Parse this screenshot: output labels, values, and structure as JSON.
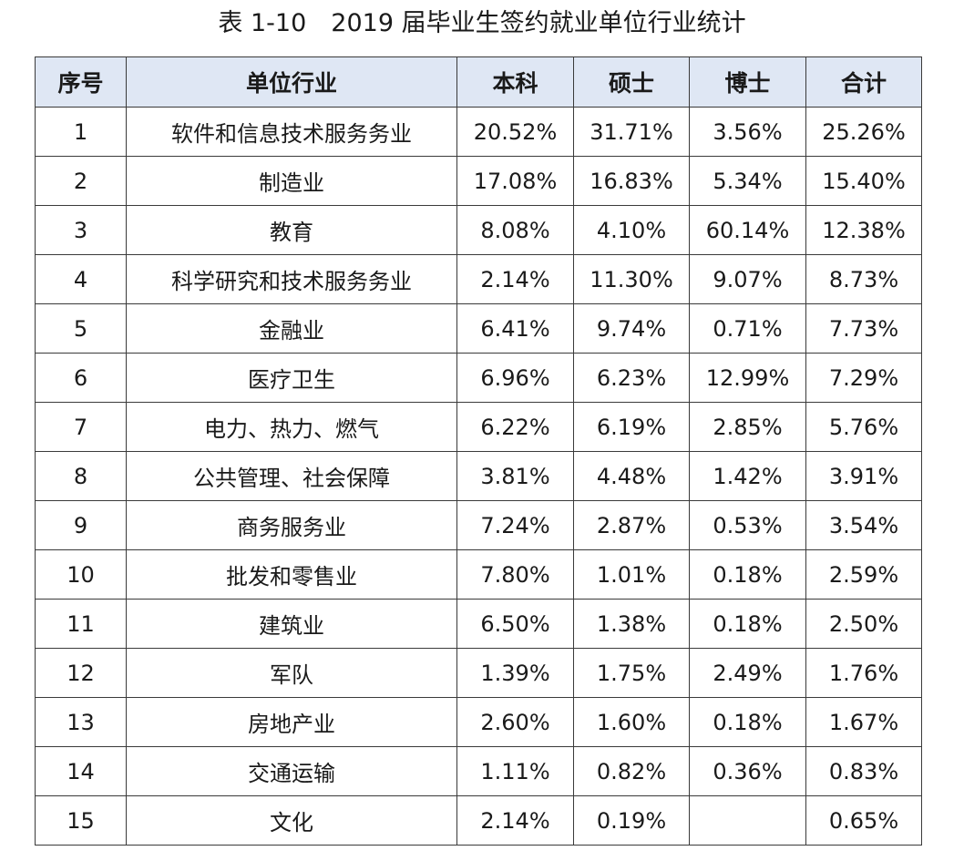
{
  "title": "表 1-10　2019 届毕业生签约就业单位行业统计",
  "headers": {
    "seq": "序号",
    "industry": "单位行业",
    "bachelor": "本科",
    "master": "硕士",
    "doctor": "博士",
    "total": "合计"
  },
  "rows": [
    {
      "seq": "1",
      "industry": "软件和信息技术服务务业",
      "bachelor": "20.52%",
      "master": "31.71%",
      "doctor": "3.56%",
      "total": "25.26%"
    },
    {
      "seq": "2",
      "industry": "制造业",
      "bachelor": "17.08%",
      "master": "16.83%",
      "doctor": "5.34%",
      "total": "15.40%"
    },
    {
      "seq": "3",
      "industry": "教育",
      "bachelor": "8.08%",
      "master": "4.10%",
      "doctor": "60.14%",
      "total": "12.38%"
    },
    {
      "seq": "4",
      "industry": "科学研究和技术服务务业",
      "bachelor": "2.14%",
      "master": "11.30%",
      "doctor": "9.07%",
      "total": "8.73%"
    },
    {
      "seq": "5",
      "industry": "金融业",
      "bachelor": "6.41%",
      "master": "9.74%",
      "doctor": "0.71%",
      "total": "7.73%"
    },
    {
      "seq": "6",
      "industry": "医疗卫生",
      "bachelor": "6.96%",
      "master": "6.23%",
      "doctor": "12.99%",
      "total": "7.29%"
    },
    {
      "seq": "7",
      "industry": "电力、热力、燃气",
      "bachelor": "6.22%",
      "master": "6.19%",
      "doctor": "2.85%",
      "total": "5.76%"
    },
    {
      "seq": "8",
      "industry": "公共管理、社会保障",
      "bachelor": "3.81%",
      "master": "4.48%",
      "doctor": "1.42%",
      "total": "3.91%"
    },
    {
      "seq": "9",
      "industry": "商务服务业",
      "bachelor": "7.24%",
      "master": "2.87%",
      "doctor": "0.53%",
      "total": "3.54%"
    },
    {
      "seq": "10",
      "industry": "批发和零售业",
      "bachelor": "7.80%",
      "master": "1.01%",
      "doctor": "0.18%",
      "total": "2.59%"
    },
    {
      "seq": "11",
      "industry": "建筑业",
      "bachelor": "6.50%",
      "master": "1.38%",
      "doctor": "0.18%",
      "total": "2.50%"
    },
    {
      "seq": "12",
      "industry": "军队",
      "bachelor": "1.39%",
      "master": "1.75%",
      "doctor": "2.49%",
      "total": "1.76%"
    },
    {
      "seq": "13",
      "industry": "房地产业",
      "bachelor": "2.60%",
      "master": "1.60%",
      "doctor": "0.18%",
      "total": "1.67%"
    },
    {
      "seq": "14",
      "industry": "交通运输",
      "bachelor": "1.11%",
      "master": "0.82%",
      "doctor": "0.36%",
      "total": "0.83%"
    },
    {
      "seq": "15",
      "industry": "文化",
      "bachelor": "2.14%",
      "master": "0.19%",
      "doctor": "",
      "total": "0.65%"
    }
  ],
  "colors": {
    "header_bg": "#dfe7f4",
    "border": "#3a3a3a",
    "text": "#1a1a1a"
  }
}
